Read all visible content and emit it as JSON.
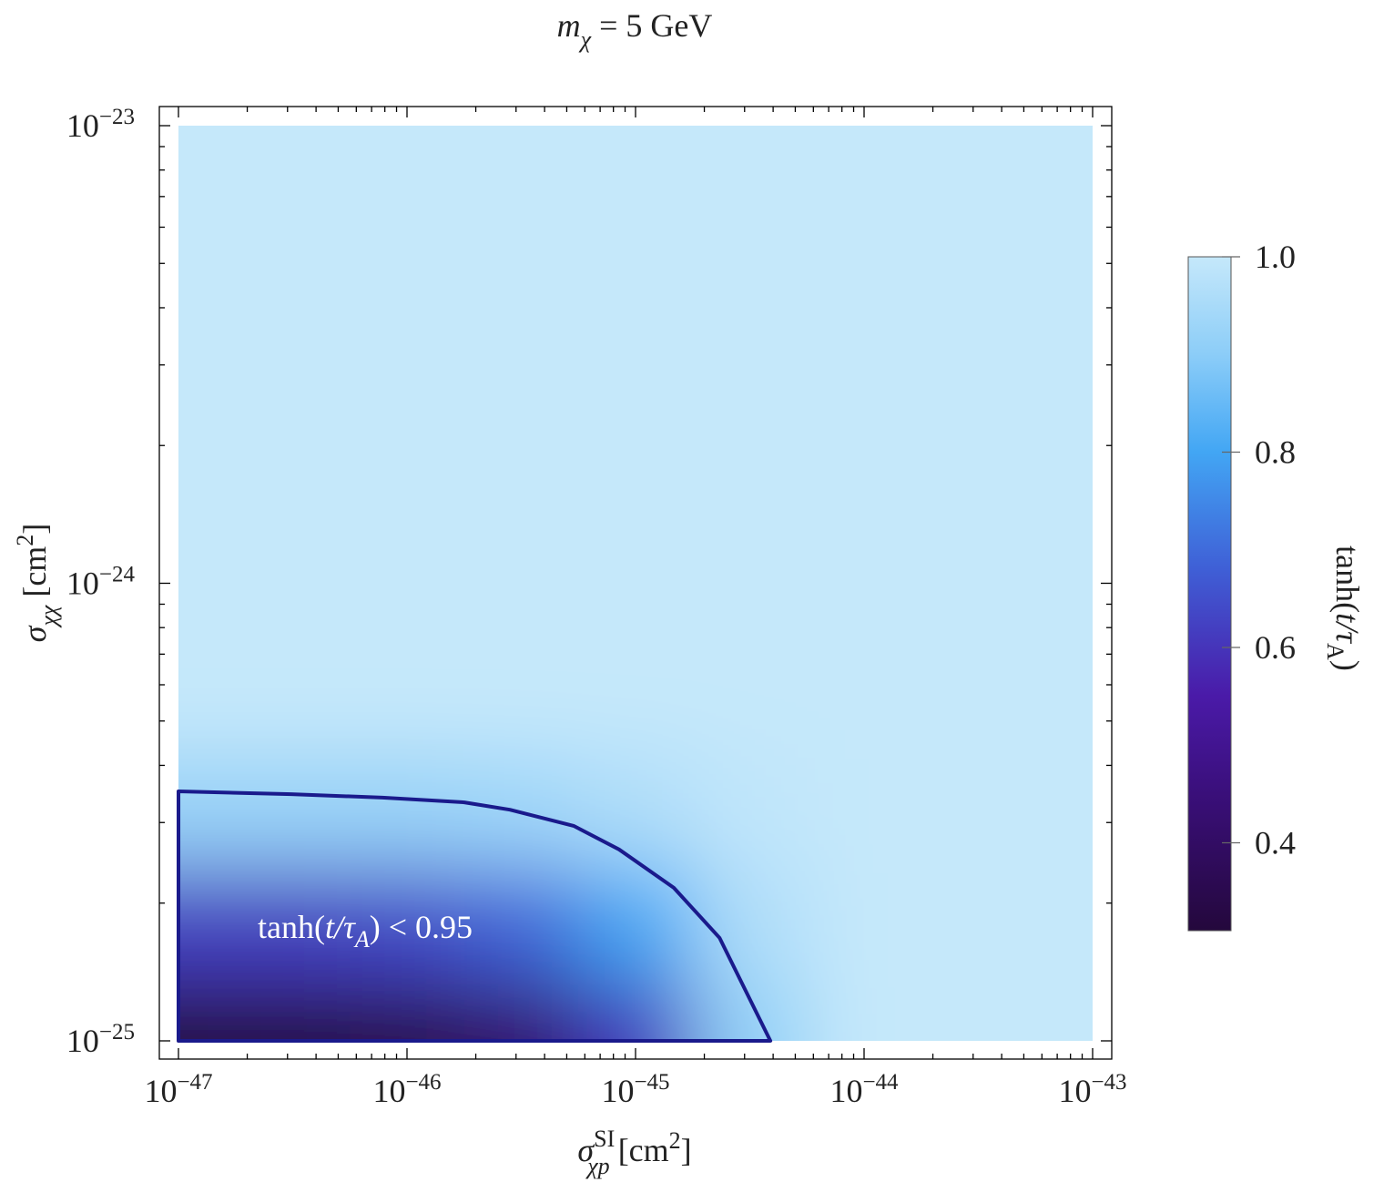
{
  "chart_data": {
    "type": "density",
    "title": [
      "m",
      "χ",
      " = 5 GeV"
    ],
    "x_label": [
      "σ",
      "SI",
      "χp",
      " [cm",
      "2",
      "]"
    ],
    "y_label": [
      "σ",
      "χχ",
      " [cm",
      "2",
      "]"
    ],
    "colorbar_label": [
      "tanh(",
      "t",
      "/τ",
      "A",
      ")"
    ],
    "annotation": [
      "tanh(",
      "t",
      "/τ",
      "A",
      ") < 0.95"
    ],
    "log_x": true,
    "log_y": true,
    "xlim": [
      1e-47,
      1e-43
    ],
    "ylim": [
      1e-25,
      1e-23
    ],
    "xticks": [
      {
        "value": 1e-47,
        "label": "10−47"
      },
      {
        "value": 1e-46,
        "label": "10−46"
      },
      {
        "value": 1e-45,
        "label": "10−45"
      },
      {
        "value": 1e-44,
        "label": "10−44"
      },
      {
        "value": 1e-43,
        "label": "10−43"
      }
    ],
    "yticks": [
      {
        "value": 1e-25,
        "label": "10−25"
      },
      {
        "value": 1e-24,
        "label": "10−24"
      },
      {
        "value": 1e-23,
        "label": "10−23"
      }
    ],
    "xminorticks": [
      2e-47,
      3e-47,
      4e-47,
      5e-47,
      6e-47,
      7e-47,
      8e-47,
      9e-47,
      2e-46,
      3e-46,
      4e-46,
      5e-46,
      6e-46,
      7e-46,
      8e-46,
      9e-46,
      2e-45,
      3e-45,
      4e-45,
      5e-45,
      6e-45,
      7e-45,
      8e-45,
      9e-45,
      2e-44,
      3e-44,
      4e-44,
      5e-44,
      6e-44,
      7e-44,
      8e-44,
      9e-44
    ],
    "yminorticks": [
      2e-25,
      3e-25,
      4e-25,
      5e-25,
      6e-25,
      7e-25,
      8e-25,
      9e-25,
      2e-24,
      3e-24,
      4e-24,
      5e-24,
      6e-24,
      7e-24,
      8e-24,
      9e-24
    ],
    "x": [
      1e-47,
      3.16e-47,
      1e-46,
      3.16e-46,
      1e-45,
      3.16e-45,
      1e-44,
      3.16e-44,
      1e-43
    ],
    "y": [
      1e-25,
      1.78e-25,
      3.16e-25,
      5.62e-25,
      1e-24,
      1.78e-24,
      3.16e-24,
      5.62e-24,
      1e-23
    ],
    "z": [
      [
        0.32,
        0.33,
        0.35,
        0.42,
        0.61,
        0.91,
        1.0,
        1.0,
        1.0
      ],
      [
        0.62,
        0.62,
        0.64,
        0.69,
        0.8,
        0.96,
        1.0,
        1.0,
        1.0
      ],
      [
        0.92,
        0.92,
        0.92,
        0.93,
        0.96,
        0.99,
        1.0,
        1.0,
        1.0
      ],
      [
        1.0,
        1.0,
        1.0,
        1.0,
        1.0,
        1.0,
        1.0,
        1.0,
        1.0
      ],
      [
        1.0,
        1.0,
        1.0,
        1.0,
        1.0,
        1.0,
        1.0,
        1.0,
        1.0
      ],
      [
        1.0,
        1.0,
        1.0,
        1.0,
        1.0,
        1.0,
        1.0,
        1.0,
        1.0
      ],
      [
        1.0,
        1.0,
        1.0,
        1.0,
        1.0,
        1.0,
        1.0,
        1.0,
        1.0
      ],
      [
        1.0,
        1.0,
        1.0,
        1.0,
        1.0,
        1.0,
        1.0,
        1.0,
        1.0
      ],
      [
        1.0,
        1.0,
        1.0,
        1.0,
        1.0,
        1.0,
        1.0,
        1.0,
        1.0
      ]
    ],
    "clim": [
      0.31,
      1.0
    ],
    "cticks": [
      0.4,
      0.6,
      0.8,
      {
        "value": 1.0,
        "label": "1.0"
      }
    ],
    "colormap": [
      [
        0.31,
        "#24083c"
      ],
      [
        0.45,
        "#3a0f7a"
      ],
      [
        0.55,
        "#4a1aa8"
      ],
      [
        0.68,
        "#3f5fd6"
      ],
      [
        0.8,
        "#42a6f4"
      ],
      [
        0.9,
        "#8ccdf8"
      ],
      [
        1.0,
        "#c5e8fa"
      ]
    ],
    "contour": {
      "color": "#1a1a8c",
      "x": [
        1e-47,
        3.12e-47,
        7.8e-47,
        1.78e-46,
        2.82e-46,
        5.36e-46,
        8.47e-46,
        1.47e-45,
        2.33e-45,
        3.89e-45,
        1e-47
      ],
      "y": [
        3.51e-25,
        3.46e-25,
        3.4e-25,
        3.32e-25,
        3.2e-25,
        2.95e-25,
        2.62e-25,
        2.16e-25,
        1.68e-25,
        1e-25,
        1e-25
      ]
    }
  }
}
